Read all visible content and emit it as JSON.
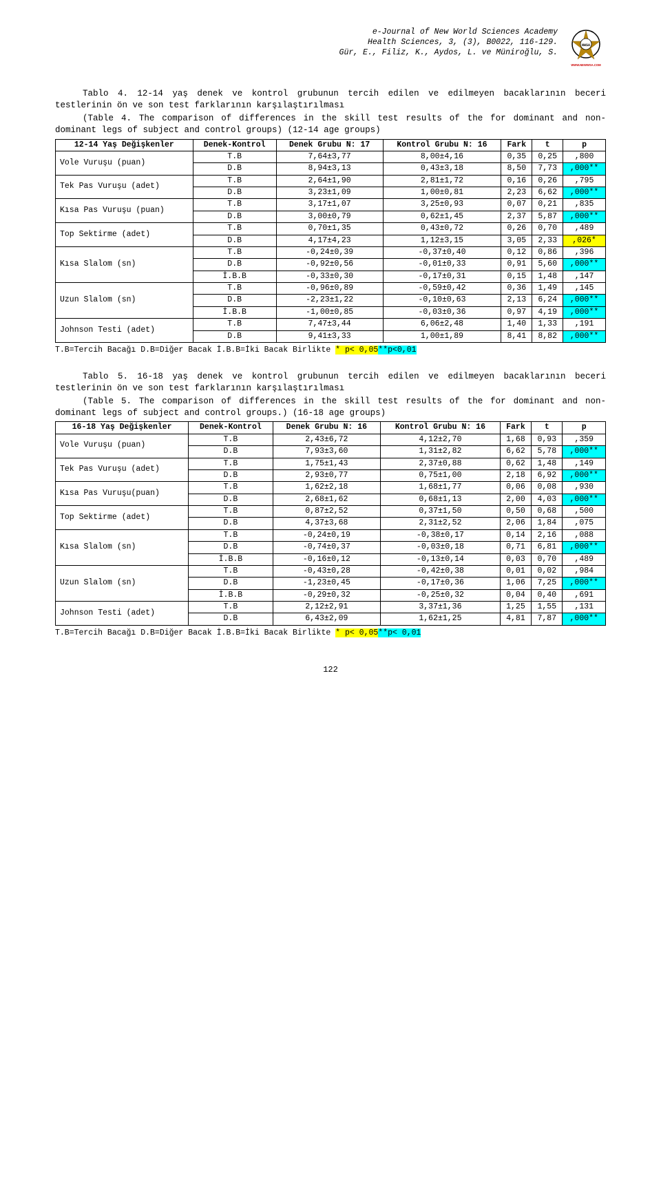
{
  "header": {
    "line1": "e-Journal of New World Sciences Academy",
    "line2": "Health Sciences, 3, (3), B0022, 116-129.",
    "line3": "Gür, E., Filiz, K., Aydos, L. ve Müniroğlu, S.",
    "logo_url_text": "WWW.NEWWSA.COM"
  },
  "table4": {
    "title_tr": "Tablo 4. 12-14 yaş denek ve kontrol grubunun tercih edilen ve edilmeyen bacaklarının beceri testlerinin ön ve son test farklarının karşılaştırılması",
    "title_en": "(Table 4. The comparison of differences in the skill test results of the for dominant and non-dominant legs of subject and control groups) (12-14 age groups)",
    "head": {
      "var": "12-14 Yaş Değişkenler",
      "dk": "Denek-Kontrol",
      "dg": "Denek Grubu N: 17",
      "kg": "Kontrol Grubu N: 16",
      "fark": "Fark",
      "t": "t",
      "p": "p"
    },
    "vars": [
      "Vole Vuruşu (puan)",
      "Tek Pas Vuruşu (adet)",
      "Kısa Pas Vuruşu (puan)",
      "Top Sektirme (adet)",
      "Kısa Slalom (sn)",
      "Uzun Slalom (sn)",
      "Johnson Testi (adet)"
    ],
    "rows": [
      {
        "dk": "T.B",
        "dg": "7,64±3,77",
        "kg": "8,00±4,16",
        "f": "0,35",
        "t": "0,25",
        "p": ",800",
        "hl": ""
      },
      {
        "dk": "D.B",
        "dg": "8,94±3,13",
        "kg": "0,43±3,18",
        "f": "8,50",
        "t": "7,73",
        "p": ",000**",
        "hl": "cyan"
      },
      {
        "dk": "T.B",
        "dg": "2,64±1,90",
        "kg": "2,81±1,72",
        "f": "0,16",
        "t": "0,26",
        "p": ",795",
        "hl": ""
      },
      {
        "dk": "D.B",
        "dg": "3,23±1,09",
        "kg": "1,00±0,81",
        "f": "2,23",
        "t": "6,62",
        "p": ",000**",
        "hl": "cyan"
      },
      {
        "dk": "T.B",
        "dg": "3,17±1,07",
        "kg": "3,25±0,93",
        "f": "0,07",
        "t": "0,21",
        "p": ",835",
        "hl": ""
      },
      {
        "dk": "D.B",
        "dg": "3,00±0,79",
        "kg": "0,62±1,45",
        "f": "2,37",
        "t": "5,87",
        "p": ",000**",
        "hl": "cyan"
      },
      {
        "dk": "T.B",
        "dg": "0,70±1,35",
        "kg": "0,43±0,72",
        "f": "0,26",
        "t": "0,70",
        "p": ",489",
        "hl": ""
      },
      {
        "dk": "D.B",
        "dg": "4,17±4,23",
        "kg": "1,12±3,15",
        "f": "3,05",
        "t": "2,33",
        "p": ",026*",
        "hl": "yellow"
      },
      {
        "dk": "T.B",
        "dg": "-0,24±0,39",
        "kg": "-0,37±0,40",
        "f": "0,12",
        "t": "0,86",
        "p": ",396",
        "hl": ""
      },
      {
        "dk": "D.B",
        "dg": "-0,92±0,56",
        "kg": "-0,01±0,33",
        "f": "0,91",
        "t": "5,60",
        "p": ",000**",
        "hl": "cyan"
      },
      {
        "dk": "İ.B.B",
        "dg": "-0,33±0,30",
        "kg": "-0,17±0,31",
        "f": "0,15",
        "t": "1,48",
        "p": ",147",
        "hl": ""
      },
      {
        "dk": "T.B",
        "dg": "-0,96±0,89",
        "kg": "-0,59±0,42",
        "f": "0,36",
        "t": "1,49",
        "p": ",145",
        "hl": ""
      },
      {
        "dk": "D.B",
        "dg": "-2,23±1,22",
        "kg": "-0,10±0,63",
        "f": "2,13",
        "t": "6,24",
        "p": ",000**",
        "hl": "cyan"
      },
      {
        "dk": "İ.B.B",
        "dg": "-1,00±0,85",
        "kg": "-0,03±0,36",
        "f": "0,97",
        "t": "4,19",
        "p": ",000**",
        "hl": "cyan"
      },
      {
        "dk": "T.B",
        "dg": "7,47±3,44",
        "kg": "6,06±2,48",
        "f": "1,40",
        "t": "1,33",
        "p": ",191",
        "hl": ""
      },
      {
        "dk": "D.B",
        "dg": "9,41±3,33",
        "kg": "1,00±1,89",
        "f": "8,41",
        "t": "8,82",
        "p": ",000**",
        "hl": "cyan"
      }
    ],
    "footnote_plain": "T.B=Tercih Bacağı   D.B=Diğer Bacak  İ.B.B=İki Bacak Birlikte",
    "footnote_hl1": " * p< 0,05",
    "footnote_hl2": "**p<0,01"
  },
  "table5": {
    "title_tr": "Tablo 5. 16-18 yaş denek ve kontrol grubunun tercih edilen ve edilmeyen bacaklarının beceri testlerinin ön ve son test farklarının karşılaştırılması",
    "title_en": "(Table 5. The comparison of differences in the skill test results of the for dominant and non-dominant legs of subject and control groups.) (16-18 age groups)",
    "head": {
      "var": "16-18 Yaş Değişkenler",
      "dk": "Denek-Kontrol",
      "dg": "Denek Grubu N: 16",
      "kg": "Kontrol Grubu N: 16",
      "fark": "Fark",
      "t": "t",
      "p": "p"
    },
    "vars": [
      "Vole Vuruşu (puan)",
      "Tek Pas Vuruşu (adet)",
      "Kısa Pas Vuruşu(puan)",
      "Top Sektirme (adet)",
      "Kısa Slalom (sn)",
      "Uzun Slalom (sn)",
      "Johnson Testi (adet)"
    ],
    "rows": [
      {
        "dk": "T.B",
        "dg": "2,43±6,72",
        "kg": "4,12±2,70",
        "f": "1,68",
        "t": "0,93",
        "p": ",359",
        "hl": ""
      },
      {
        "dk": "D.B",
        "dg": "7,93±3,60",
        "kg": "1,31±2,82",
        "f": "6,62",
        "t": "5,78",
        "p": ",000**",
        "hl": "cyan"
      },
      {
        "dk": "T.B",
        "dg": "1,75±1,43",
        "kg": "2,37±0,88",
        "f": "0,62",
        "t": "1,48",
        "p": ",149",
        "hl": ""
      },
      {
        "dk": "D.B",
        "dg": "2,93±0,77",
        "kg": "0,75±1,00",
        "f": "2,18",
        "t": "6,92",
        "p": ",000**",
        "hl": "cyan"
      },
      {
        "dk": "T.B",
        "dg": "1,62±2,18",
        "kg": "1,68±1,77",
        "f": "0,06",
        "t": "0,08",
        "p": ",930",
        "hl": ""
      },
      {
        "dk": "D.B",
        "dg": "2,68±1,62",
        "kg": "0,68±1,13",
        "f": "2,00",
        "t": "4,03",
        "p": ",000**",
        "hl": "cyan"
      },
      {
        "dk": "T.B",
        "dg": "0,87±2,52",
        "kg": "0,37±1,50",
        "f": "0,50",
        "t": "0,68",
        "p": ",500",
        "hl": ""
      },
      {
        "dk": "D.B",
        "dg": "4,37±3,68",
        "kg": "2,31±2,52",
        "f": "2,06",
        "t": "1,84",
        "p": ",075",
        "hl": ""
      },
      {
        "dk": "T.B",
        "dg": "-0,24±0,19",
        "kg": "-0,38±0,17",
        "f": "0,14",
        "t": "2,16",
        "p": ",088",
        "hl": ""
      },
      {
        "dk": "D.B",
        "dg": "-0,74±0,37",
        "kg": "-0,03±0,18",
        "f": "0,71",
        "t": "6,81",
        "p": ",000**",
        "hl": "cyan"
      },
      {
        "dk": "İ.B.B",
        "dg": "-0,16±0,12",
        "kg": "-0,13±0,14",
        "f": "0,03",
        "t": "0,70",
        "p": ",489",
        "hl": ""
      },
      {
        "dk": "T.B",
        "dg": "-0,43±0,28",
        "kg": "-0,42±0,38",
        "f": "0,01",
        "t": "0,02",
        "p": ",984",
        "hl": ""
      },
      {
        "dk": "D.B",
        "dg": "-1,23±0,45",
        "kg": "-0,17±0,36",
        "f": "1,06",
        "t": "7,25",
        "p": ",000**",
        "hl": "cyan"
      },
      {
        "dk": "İ.B.B",
        "dg": "-0,29±0,32",
        "kg": "-0,25±0,32",
        "f": "0,04",
        "t": "0,40",
        "p": ",691",
        "hl": ""
      },
      {
        "dk": "T.B",
        "dg": "2,12±2,91",
        "kg": "3,37±1,36",
        "f": "1,25",
        "t": "1,55",
        "p": ",131",
        "hl": ""
      },
      {
        "dk": "D.B",
        "dg": "6,43±2,09",
        "kg": "1,62±1,25",
        "f": "4,81",
        "t": "7,87",
        "p": ",000**",
        "hl": "cyan"
      }
    ],
    "footnote_plain": "T.B=Tercih Bacağı   D.B=Diğer Bacak İ.B.B=İki Bacak Birlikte",
    "footnote_hl1": " * p< 0,05",
    "footnote_hl2": "**p< 0,01"
  },
  "row_spans": [
    2,
    2,
    2,
    2,
    3,
    3,
    2
  ],
  "page_number": "122",
  "colors": {
    "yellow": "#ffff00",
    "cyan": "#00ffff"
  }
}
